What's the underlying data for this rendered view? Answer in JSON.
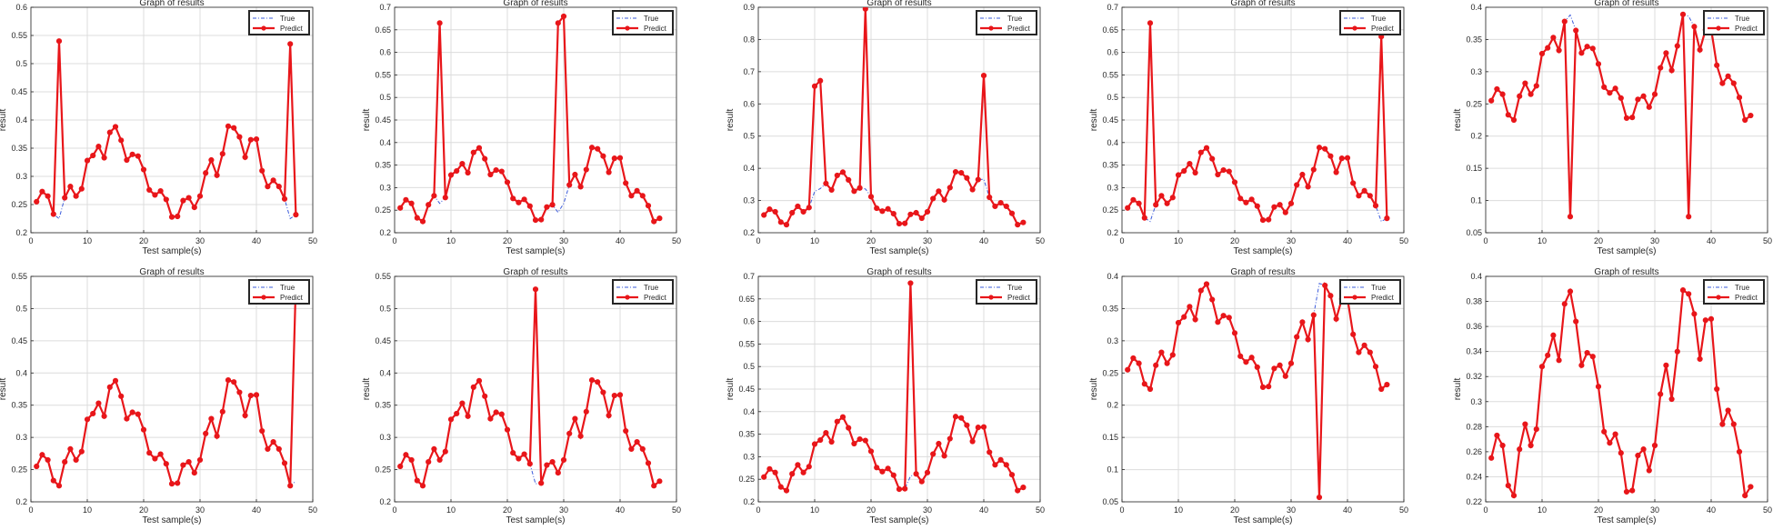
{
  "shared": {
    "title": "Graph of results",
    "xlabel": "Test sample(s)",
    "ylabel": "result",
    "legend_true": "True",
    "legend_predict": "Predict",
    "legend_position": "top-right",
    "xlim": [
      0,
      50
    ],
    "xticks": [
      0,
      10,
      20,
      30,
      40,
      50
    ],
    "colors": {
      "true": "#3b5bdb",
      "predict": "#e8161a",
      "grid": "#dcdcdc",
      "axis": "#262626"
    }
  },
  "base_true": [
    0.255,
    0.273,
    0.265,
    0.233,
    0.225,
    0.262,
    0.282,
    0.265,
    0.278,
    0.328,
    0.337,
    0.353,
    0.333,
    0.378,
    0.388,
    0.364,
    0.329,
    0.339,
    0.336,
    0.312,
    0.276,
    0.267,
    0.274,
    0.259,
    0.228,
    0.229,
    0.257,
    0.262,
    0.245,
    0.265,
    0.306,
    0.329,
    0.302,
    0.34,
    0.389,
    0.386,
    0.37,
    0.334,
    0.365,
    0.366,
    0.31,
    0.282,
    0.293,
    0.282,
    0.26,
    0.225,
    0.232
  ],
  "chart_data": [
    {
      "type": "line",
      "title": "Graph of results",
      "xlabel": "Test sample(s)",
      "ylabel": "result",
      "xlim": [
        0,
        50
      ],
      "ylim": [
        0.2,
        0.6
      ],
      "yticks": [
        0.2,
        0.25,
        0.3,
        0.35,
        0.4,
        0.45,
        0.5,
        0.55,
        0.6
      ],
      "series": [
        {
          "name": "True",
          "values": "base_true"
        },
        {
          "name": "Predict",
          "values": "base_true",
          "overrides": {
            "5": 0.54,
            "46": 0.535
          }
        }
      ]
    },
    {
      "type": "line",
      "title": "Graph of results",
      "xlabel": "Test sample(s)",
      "ylabel": "result",
      "xlim": [
        0,
        50
      ],
      "ylim": [
        0.2,
        0.7
      ],
      "yticks": [
        0.2,
        0.25,
        0.3,
        0.35,
        0.4,
        0.45,
        0.5,
        0.55,
        0.6,
        0.65,
        0.7
      ],
      "series": [
        {
          "name": "True",
          "values": "base_true"
        },
        {
          "name": "Predict",
          "values": "base_true",
          "overrides": {
            "8": 0.665,
            "29": 0.665,
            "30": 0.68
          }
        }
      ]
    },
    {
      "type": "line",
      "title": "Graph of results",
      "xlabel": "Test sample(s)",
      "ylabel": "result",
      "xlim": [
        0,
        50
      ],
      "ylim": [
        0.2,
        0.9
      ],
      "yticks": [
        0.2,
        0.3,
        0.4,
        0.5,
        0.6,
        0.7,
        0.8,
        0.9
      ],
      "series": [
        {
          "name": "True",
          "values": "base_true"
        },
        {
          "name": "Predict",
          "values": "base_true",
          "overrides": {
            "10": 0.655,
            "11": 0.672,
            "19": 0.895,
            "40": 0.688
          }
        }
      ]
    },
    {
      "type": "line",
      "title": "Graph of results",
      "xlabel": "Test sample(s)",
      "ylabel": "result",
      "xlim": [
        0,
        50
      ],
      "ylim": [
        0.2,
        0.7
      ],
      "yticks": [
        0.2,
        0.25,
        0.3,
        0.35,
        0.4,
        0.45,
        0.5,
        0.55,
        0.6,
        0.65,
        0.7
      ],
      "series": [
        {
          "name": "True",
          "values": "base_true"
        },
        {
          "name": "Predict",
          "values": "base_true",
          "overrides": {
            "5": 0.665,
            "46": 0.635
          }
        }
      ]
    },
    {
      "type": "line",
      "title": "Graph of results",
      "xlabel": "Test sample(s)",
      "ylabel": "result",
      "xlim": [
        0,
        50
      ],
      "ylim": [
        0.05,
        0.4
      ],
      "yticks": [
        0.05,
        0.1,
        0.15,
        0.2,
        0.25,
        0.3,
        0.35,
        0.4
      ],
      "series": [
        {
          "name": "True",
          "values": "base_true"
        },
        {
          "name": "Predict",
          "values": "base_true",
          "overrides": {
            "15": 0.075,
            "36": 0.075
          }
        }
      ]
    },
    {
      "type": "line",
      "title": "Graph of results",
      "xlabel": "Test sample(s)",
      "ylabel": "result",
      "xlim": [
        0,
        50
      ],
      "ylim": [
        0.2,
        0.55
      ],
      "yticks": [
        0.2,
        0.25,
        0.3,
        0.35,
        0.4,
        0.45,
        0.5,
        0.55
      ],
      "series": [
        {
          "name": "True",
          "values": "base_true"
        },
        {
          "name": "Predict",
          "values": "base_true",
          "overrides": {
            "47": 0.54
          }
        }
      ]
    },
    {
      "type": "line",
      "title": "Graph of results",
      "xlabel": "Test sample(s)",
      "ylabel": "result",
      "xlim": [
        0,
        50
      ],
      "ylim": [
        0.2,
        0.55
      ],
      "yticks": [
        0.2,
        0.25,
        0.3,
        0.35,
        0.4,
        0.45,
        0.5,
        0.55
      ],
      "series": [
        {
          "name": "True",
          "values": "base_true"
        },
        {
          "name": "Predict",
          "values": "base_true",
          "overrides": {
            "25": 0.53
          }
        }
      ]
    },
    {
      "type": "line",
      "title": "Graph of results",
      "xlabel": "Test sample(s)",
      "ylabel": "result",
      "xlim": [
        0,
        50
      ],
      "ylim": [
        0.2,
        0.7
      ],
      "yticks": [
        0.2,
        0.25,
        0.3,
        0.35,
        0.4,
        0.45,
        0.5,
        0.55,
        0.6,
        0.65,
        0.7
      ],
      "series": [
        {
          "name": "True",
          "values": "base_true"
        },
        {
          "name": "Predict",
          "values": "base_true",
          "overrides": {
            "27": 0.685
          }
        }
      ]
    },
    {
      "type": "line",
      "title": "Graph of results",
      "xlabel": "Test sample(s)",
      "ylabel": "result",
      "xlim": [
        0,
        50
      ],
      "ylim": [
        0.05,
        0.4
      ],
      "yticks": [
        0.05,
        0.1,
        0.15,
        0.2,
        0.25,
        0.3,
        0.35,
        0.4
      ],
      "series": [
        {
          "name": "True",
          "values": "base_true"
        },
        {
          "name": "Predict",
          "values": "base_true",
          "overrides": {
            "35": 0.057
          }
        }
      ]
    },
    {
      "type": "line",
      "title": "Graph of results",
      "xlabel": "Test sample(s)",
      "ylabel": "result",
      "xlim": [
        0,
        50
      ],
      "ylim": [
        0.22,
        0.4
      ],
      "yticks": [
        0.22,
        0.24,
        0.26,
        0.28,
        0.3,
        0.32,
        0.34,
        0.36,
        0.38,
        0.4
      ],
      "series": [
        {
          "name": "True",
          "values": "base_true"
        },
        {
          "name": "Predict",
          "values": "base_true",
          "overrides": {}
        }
      ]
    }
  ]
}
